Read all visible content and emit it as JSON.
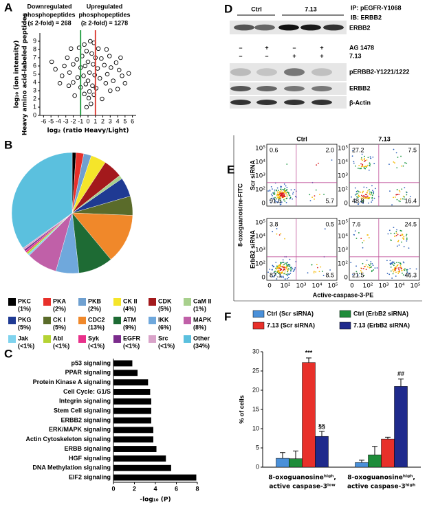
{
  "panel_labels": [
    "A",
    "B",
    "C",
    "D",
    "E",
    "F"
  ],
  "chart_data": [
    {
      "type": "scatter",
      "annotations": [
        [
          "Downregulated",
          "phosphopeptides",
          "(≤ 2-fold) = 268"
        ],
        [
          "Upregulated",
          "phosphopeptides",
          "(≥ 2-fold) = 1278"
        ]
      ],
      "x_label": "log₂ (ratio Heavy/Light)",
      "y_label": [
        "log₁₀ (ion intensity)",
        "Heavy amino acid-labeled peptides"
      ],
      "x": [
        -0.5,
        0.3,
        0.8,
        -1.2,
        1.4,
        -0.2,
        0.5,
        -0.8,
        1.0,
        -1.5,
        1.8,
        0,
        -0.4,
        0.7,
        -1.0,
        1.3,
        -2.0,
        2.2,
        0.2,
        -0.6,
        0.9,
        -1.4,
        1.6,
        0,
        -0.3,
        0.6,
        -1.0,
        1.1,
        0.2,
        -0.5,
        0.8,
        0.1,
        -2.5,
        2.6,
        -2.8,
        2.9,
        -3.2,
        3.1,
        -3.5,
        3.4,
        3.8,
        4.2,
        4.6,
        5.0,
        4.0,
        3.0,
        -2.6,
        -4.4,
        -4.9,
        -3.8,
        2.5,
        -2.3,
        0.4,
        -0.2,
        5.5,
        4.4,
        -1.8,
        1.9,
        2.4,
        -2.0
      ],
      "y": [
        8.6,
        9.0,
        8.8,
        8.2,
        8.1,
        7.8,
        7.5,
        7.2,
        7.0,
        6.8,
        6.9,
        6.5,
        6.0,
        6.2,
        5.8,
        5.7,
        6.2,
        6.1,
        5.2,
        4.8,
        4.9,
        4.6,
        4.5,
        4.2,
        3.8,
        3.6,
        3.4,
        3.3,
        2.9,
        2.6,
        2.5,
        2.1,
        5.2,
        5.0,
        7.0,
        7.2,
        6.0,
        5.8,
        4.8,
        4.2,
        6.4,
        5.5,
        4.8,
        3.9,
        3.2,
        3.0,
        3.6,
        5.6,
        6.5,
        3.9,
        8.0,
        8.1,
        1.4,
        1.0,
        5.1,
        7.0,
        2.4,
        2.0,
        3.9,
        4.0
      ],
      "color": "#000000",
      "xlim": [
        -6.5,
        6.5
      ],
      "ylim": [
        0,
        10
      ],
      "xticks": [
        -6,
        -5,
        -4,
        -3,
        -2,
        -1,
        0,
        1,
        2,
        3,
        4,
        5,
        6
      ],
      "yticks": [
        0,
        1,
        2,
        3,
        4,
        5,
        6,
        7,
        8,
        9
      ],
      "reference_lines": [
        {
          "x": -1,
          "color": "#1a9a3a"
        },
        {
          "x": 1,
          "color": "#d9342b"
        }
      ]
    },
    {
      "type": "pie",
      "categories": [
        "PKC",
        "PKA",
        "PKB",
        "CK II",
        "CDK",
        "CaM II",
        "PKG",
        "CK I",
        "CDC2",
        "ATM",
        "IKK",
        "MAPK",
        "Jak",
        "Abl",
        "Syk",
        "EGFR",
        "Src",
        "Other"
      ],
      "values": [
        1,
        2,
        2,
        4,
        5,
        1,
        5,
        5,
        13,
        9,
        6,
        8,
        0.5,
        0.5,
        0.5,
        0.5,
        0.5,
        34
      ],
      "value_labels": [
        "(1%)",
        "(2%)",
        "(2%)",
        "(4%)",
        "(5%)",
        "(1%)",
        "(5%)",
        "(5%)",
        "(13%)",
        "(9%)",
        "(6%)",
        "(8%)",
        "(<1%)",
        "(<1%)",
        "(<1%)",
        "(<1%)",
        "(<1%)",
        "(34%)"
      ],
      "colors": [
        "#000000",
        "#e8302a",
        "#6fa0d0",
        "#f5e52a",
        "#a3191c",
        "#a8d08d",
        "#1f3a93",
        "#5a6b2a",
        "#f0882a",
        "#1e6b34",
        "#6fa8dc",
        "#c060a8",
        "#7fd3ee",
        "#b5d334",
        "#e8308a",
        "#7b2c8c",
        "#d9a3c9",
        "#5bc0de"
      ]
    },
    {
      "type": "hbar",
      "categories": [
        "p53 signaling",
        "PPAR signaling",
        "Protein Kinase A signaling",
        "Cell Cycle: G1/S",
        "Integrin signaling",
        "Stem Cell signaling",
        "ERBB2 signaling",
        "ERK/MAPK signaling",
        "Actin Cytoskeleton signaling",
        "ERBB signaling",
        "HGF signaling",
        "DNA Methylation signaling",
        "EIF2 signaling"
      ],
      "values": [
        1.8,
        2.3,
        3.3,
        3.5,
        3.6,
        3.6,
        3.6,
        3.8,
        3.8,
        4.1,
        5.0,
        5.5,
        7.9
      ],
      "color": "#000000",
      "xlim": [
        0,
        8
      ],
      "xticks": [
        0,
        2,
        4,
        6,
        8
      ],
      "x_label": "-log₁₀ (P)"
    },
    {
      "type": "flow",
      "columns": [
        "Ctrl",
        "7.13"
      ],
      "rows": [
        "Scr siRNA",
        "ErbB2 siRNA"
      ],
      "panels": [
        [
          {
            "values": [
              0.6,
              2.0,
              91.6,
              5.7
            ],
            "value_labels": [
              "0.6",
              "2.0",
              "91.6",
              "5.7"
            ]
          },
          {
            "values": [
              27.2,
              7.5,
              48.8,
              16.4
            ],
            "value_labels": [
              "27.2",
              "7.5",
              "48.8",
              "16.4"
            ]
          }
        ],
        [
          {
            "values": [
              3.8,
              0.5,
              87.1,
              8.5
            ],
            "value_labels": [
              "3.8",
              "0.5",
              "87.1",
              "8.5"
            ]
          },
          {
            "values": [
              7.6,
              24.5,
              21.5,
              46.3
            ],
            "value_labels": [
              "7.6",
              "24.5",
              "21.5",
              "46.3"
            ]
          }
        ]
      ],
      "tick_labels": [
        "0",
        "10²",
        "10³",
        "10⁴",
        "10⁵"
      ],
      "gate_color": "#c0509a",
      "x_label": "Active-caspase-3-PE",
      "y_label": "8-oxoguanosine-FITC"
    },
    {
      "type": "grouped_bar",
      "categories": [
        [
          "8-oxoguanosineʰⁱᵍʰ,",
          "active caspase-3ˡᵒʷ"
        ],
        [
          "8-oxoguanosineʰⁱᵍʰ,",
          "active caspase-3ʰⁱᵍʰ"
        ]
      ],
      "series": [
        {
          "name": "Ctrl (Scr siRNA)",
          "color": "#4a90d9",
          "values": [
            2.3,
            1.2
          ],
          "errors": [
            1.5,
            0.6
          ],
          "significance": [
            null,
            null
          ]
        },
        {
          "name": "Ctrl (ErbB2 siRNA)",
          "color": "#1e8c3a",
          "values": [
            2.2,
            3.2
          ],
          "errors": [
            2.0,
            2.2
          ],
          "significance": [
            null,
            null
          ]
        },
        {
          "name": "7.13 (Scr siRNA)",
          "color": "#e8302a",
          "values": [
            27.2,
            7.3
          ],
          "errors": [
            1.2,
            0.5
          ],
          "significance": [
            "***",
            null
          ]
        },
        {
          "name": "7.13 (ErbB2 siRNA)",
          "color": "#1f2a8c",
          "values": [
            8.0,
            21.0
          ],
          "errors": [
            1.3,
            1.9
          ],
          "significance": [
            "§§",
            "##"
          ]
        }
      ],
      "ylim": [
        0,
        30
      ],
      "yticks": [
        0,
        5,
        10,
        15,
        20,
        25,
        30
      ],
      "y_label": "% of cells"
    }
  ],
  "blot": {
    "ip": "IP: pEGFR-Y1068",
    "ib": "IB: ERBB2",
    "groups": [
      "Ctrl",
      "7.13"
    ],
    "top_band": "ERBB2",
    "treatments": [
      {
        "name": "AG 1478",
        "signs": [
          "–",
          "+",
          "–",
          "+"
        ]
      },
      {
        "name": "7.13",
        "signs": [
          "–",
          "–",
          "+",
          "+"
        ]
      }
    ],
    "bands": [
      "pERBB2-Y1221/1222",
      "ERBB2",
      "β-Actin"
    ]
  }
}
